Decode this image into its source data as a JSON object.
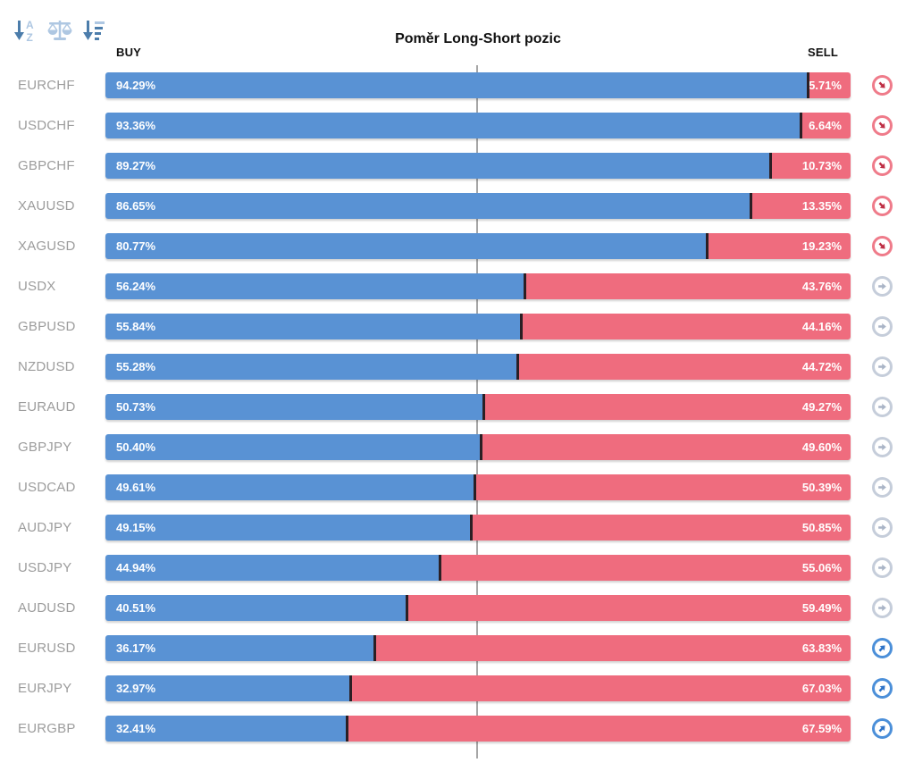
{
  "chart_data": {
    "type": "bar",
    "orientation": "horizontal_stacked",
    "title": "Poměr Long-Short pozic",
    "categories": [
      "EURCHF",
      "USDCHF",
      "GBPCHF",
      "XAUUSD",
      "XAGUSD",
      "USDX",
      "GBPUSD",
      "NZDUSD",
      "EURAUD",
      "GBPJPY",
      "USDCAD",
      "AUDJPY",
      "USDJPY",
      "AUDUSD",
      "EURUSD",
      "EURJPY",
      "EURGBP"
    ],
    "series": [
      {
        "name": "BUY",
        "color": "#5992d4",
        "values": [
          94.29,
          93.36,
          89.27,
          86.65,
          80.77,
          56.24,
          55.84,
          55.28,
          50.73,
          50.4,
          49.61,
          49.15,
          44.94,
          40.51,
          36.17,
          32.97,
          32.41
        ]
      },
      {
        "name": "SELL",
        "color": "#ef6c7e",
        "values": [
          5.71,
          6.64,
          10.73,
          13.35,
          19.23,
          43.76,
          44.16,
          44.72,
          49.27,
          49.6,
          50.39,
          50.85,
          55.06,
          59.49,
          63.83,
          67.03,
          67.59
        ]
      }
    ],
    "value_suffix": "%",
    "xlim": [
      0,
      100
    ],
    "midline": 50,
    "legend_position": "top",
    "grid": false,
    "trend_indicators": [
      "down",
      "down",
      "down",
      "down",
      "down",
      "neutral",
      "neutral",
      "neutral",
      "neutral",
      "neutral",
      "neutral",
      "neutral",
      "neutral",
      "neutral",
      "up",
      "up",
      "up"
    ]
  },
  "toolbar": {
    "sort_alpha_icon": "sort-alphabetical",
    "balance_icon": "balance-scale",
    "sort_value_icon": "sort-by-value"
  },
  "colors": {
    "buy-bar": "#5992d4",
    "sell-bar": "#ef6c7e",
    "segment-divider": "#2b1f24",
    "midline": "#a6a6a6",
    "symbol-label": "#9c9c9c",
    "header-text": "#111111",
    "bar-value-text": "#ffffff",
    "trend-down-ring": "#ef7b8a",
    "trend-down-arrow": "#bf2f45",
    "trend-neutral-ring": "#c5cdda",
    "trend-neutral-arrow": "#a9b4c6",
    "trend-up-ring": "#4b8fd9",
    "trend-up-arrow": "#2e73c8",
    "sort-icon-dark": "#4c7dab",
    "sort-icon-light": "#aec7e2"
  }
}
